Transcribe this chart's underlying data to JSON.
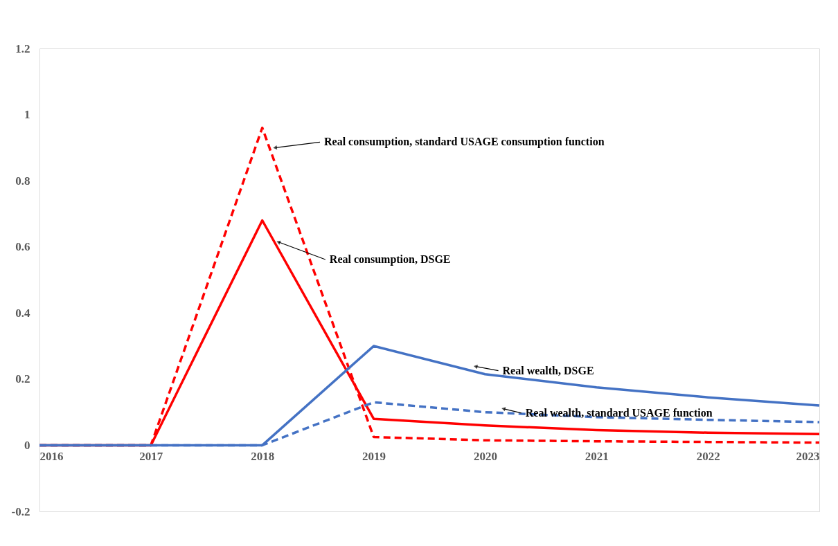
{
  "chart_data": {
    "type": "line",
    "x": [
      2016,
      2017,
      2018,
      2019,
      2020,
      2021,
      2022,
      2023
    ],
    "xlim": [
      2016,
      2023
    ],
    "xticks": [
      2016,
      2017,
      2018,
      2019,
      2020,
      2021,
      2022,
      2023
    ],
    "ylim": [
      -0.2,
      1.2
    ],
    "yticks": [
      -0.2,
      0,
      0.2,
      0.4,
      0.6,
      0.8,
      1,
      1.2
    ],
    "grid": false,
    "marker": "none",
    "series": [
      {
        "color": "#ff0000",
        "line_style": "dashed",
        "values": [
          0,
          0,
          0.96,
          0.025,
          0.015,
          0.012,
          0.01,
          0.008
        ]
      },
      {
        "color": "#ff0000",
        "line_style": "solid",
        "values": [
          0,
          0,
          0.68,
          0.08,
          0.06,
          0.046,
          0.038,
          0.034
        ]
      },
      {
        "color": "#4472c4",
        "line_style": "solid",
        "values": [
          0,
          0,
          0,
          0.3,
          0.215,
          0.175,
          0.145,
          0.12
        ]
      },
      {
        "color": "#4472c4",
        "line_style": "dashed",
        "values": [
          0,
          0,
          0,
          0.13,
          0.1,
          0.085,
          0.077,
          0.07
        ]
      }
    ],
    "annotations": [
      {
        "text": "Real consumption, standard USAGE consumption function",
        "x": 2018.12,
        "y": 0.9
      },
      {
        "text": "Real consumption, DSGE",
        "x": 2018.15,
        "y": 0.614
      },
      {
        "text": "Real wealth, DSGE",
        "x": 2019.92,
        "y": 0.238
      },
      {
        "text": "Real wealth, standard USAGE function",
        "x": 2020.17,
        "y": 0.11
      }
    ]
  }
}
